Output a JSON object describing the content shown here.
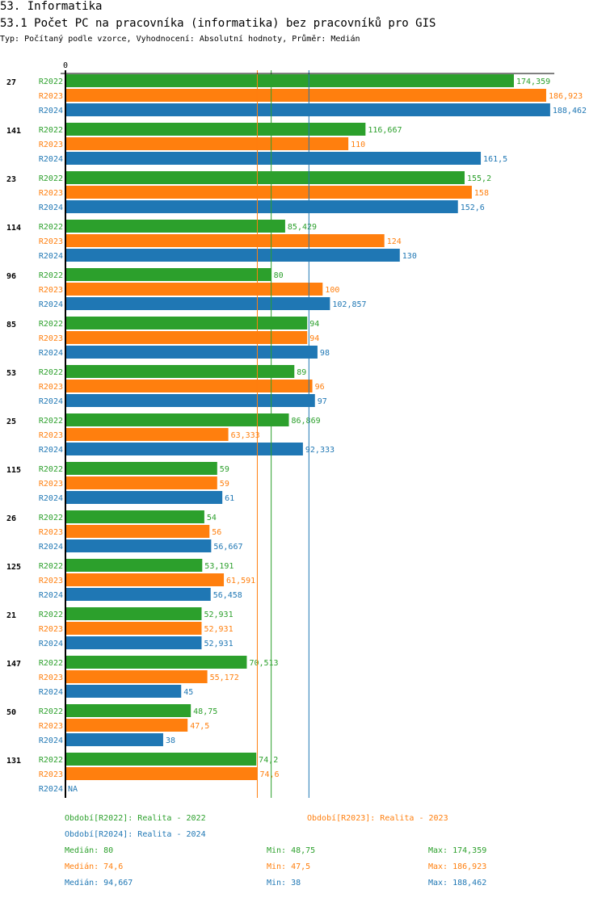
{
  "header": {
    "section": "53. Informatika",
    "title": "53.1 Počet PC na pracovníka (informatika) bez pracovníků pro GIS",
    "subtitle": "Typ: Počítaný podle vzorce, Vyhodnocení: Absolutní hodnoty, Průměr: Medián"
  },
  "chart_data": {
    "type": "bar",
    "orientation": "horizontal",
    "xlim": [
      0,
      190
    ],
    "zero_label": "0",
    "categories": [
      "27",
      "141",
      "23",
      "114",
      "96",
      "85",
      "53",
      "25",
      "115",
      "26",
      "125",
      "21",
      "147",
      "50",
      "131"
    ],
    "series": [
      {
        "name": "R2022",
        "color": "#2ca02c",
        "values": [
          174.359,
          116.667,
          155.2,
          85.429,
          80,
          94,
          89,
          86.869,
          59,
          54,
          53.191,
          52.931,
          70.513,
          48.75,
          74.2
        ],
        "labels": [
          "174,359",
          "116,667",
          "155,2",
          "85,429",
          "80",
          "94",
          "89",
          "86,869",
          "59",
          "54",
          "53,191",
          "52,931",
          "70,513",
          "48,75",
          "74,2"
        ],
        "median": 80
      },
      {
        "name": "R2023",
        "color": "#ff7f0e",
        "values": [
          186.923,
          110,
          158,
          124,
          100,
          94,
          96,
          63.333,
          59,
          56,
          61.591,
          52.931,
          55.172,
          47.5,
          74.6
        ],
        "labels": [
          "186,923",
          "110",
          "158",
          "124",
          "100",
          "94",
          "96",
          "63,333",
          "59",
          "56",
          "61,591",
          "52,931",
          "55,172",
          "47,5",
          "74,6"
        ],
        "median": 74.6
      },
      {
        "name": "R2024",
        "color": "#1f77b4",
        "values": [
          188.462,
          161.5,
          152.6,
          130,
          102.857,
          98,
          97,
          92.333,
          61,
          56.667,
          56.458,
          52.931,
          45,
          38,
          null
        ],
        "labels": [
          "188,462",
          "161,5",
          "152,6",
          "130",
          "102,857",
          "98",
          "97",
          "92,333",
          "61",
          "56,667",
          "56,458",
          "52,931",
          "45",
          "38",
          "NA"
        ],
        "median": 94.667
      }
    ]
  },
  "legend": {
    "periods": [
      "Období[R2022]: Realita - 2022",
      "Období[R2023]: Realita - 2023",
      "Období[R2024]: Realita - 2024"
    ],
    "stats": [
      {
        "median": "Medián: 80",
        "min": "Min: 48,75",
        "max": "Max: 174,359"
      },
      {
        "median": "Medián: 74,6",
        "min": "Min: 47,5",
        "max": "Max: 186,923"
      },
      {
        "median": "Medián: 94,667",
        "min": "Min: 38",
        "max": "Max: 188,462"
      }
    ]
  }
}
